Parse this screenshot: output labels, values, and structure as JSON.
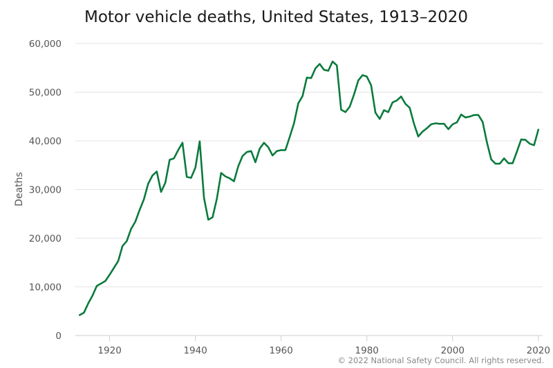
{
  "chart_data": {
    "type": "line",
    "title": "Motor vehicle deaths, United States, 1913–2020",
    "xlabel": "",
    "ylabel": "Deaths",
    "xlim": [
      1912,
      2021
    ],
    "ylim": [
      0,
      60000
    ],
    "x_ticks": [
      1920,
      1940,
      1960,
      1980,
      2000,
      2020
    ],
    "y_ticks": [
      0,
      10000,
      20000,
      30000,
      40000,
      50000,
      60000
    ],
    "y_tick_labels": [
      "0",
      "10,000",
      "20,000",
      "30,000",
      "40,000",
      "50,000",
      "60,000"
    ],
    "grid": true,
    "line_color": "#0a7a3c",
    "credit": "© 2022 National Safety Council. All rights reserved.",
    "x": [
      1913,
      1914,
      1915,
      1916,
      1917,
      1918,
      1919,
      1920,
      1921,
      1922,
      1923,
      1924,
      1925,
      1926,
      1927,
      1928,
      1929,
      1930,
      1931,
      1932,
      1933,
      1934,
      1935,
      1936,
      1937,
      1938,
      1939,
      1940,
      1941,
      1942,
      1943,
      1944,
      1945,
      1946,
      1947,
      1948,
      1949,
      1950,
      1951,
      1952,
      1953,
      1954,
      1955,
      1956,
      1957,
      1958,
      1959,
      1960,
      1961,
      1962,
      1963,
      1964,
      1965,
      1966,
      1967,
      1968,
      1969,
      1970,
      1971,
      1972,
      1973,
      1974,
      1975,
      1976,
      1977,
      1978,
      1979,
      1980,
      1981,
      1982,
      1983,
      1984,
      1985,
      1986,
      1987,
      1988,
      1989,
      1990,
      1991,
      1992,
      1993,
      1994,
      1995,
      1996,
      1997,
      1998,
      1999,
      2000,
      2001,
      2002,
      2003,
      2004,
      2005,
      2006,
      2007,
      2008,
      2009,
      2010,
      2011,
      2012,
      2013,
      2014,
      2015,
      2016,
      2017,
      2018,
      2019,
      2020
    ],
    "y": [
      4200,
      4700,
      6600,
      8200,
      10200,
      10700,
      11200,
      12500,
      13900,
      15300,
      18400,
      19400,
      21900,
      23400,
      25800,
      28000,
      31200,
      32900,
      33700,
      29500,
      31400,
      36100,
      36400,
      38100,
      39600,
      32600,
      32400,
      34500,
      39900,
      28300,
      23800,
      24300,
      28100,
      33400,
      32700,
      32300,
      31700,
      34800,
      36900,
      37700,
      37900,
      35600,
      38400,
      39600,
      38700,
      37000,
      37900,
      38100,
      38100,
      40800,
      43600,
      47700,
      49200,
      53000,
      52900,
      54900,
      55800,
      54600,
      54400,
      56300,
      55500,
      46400,
      45900,
      47000,
      49500,
      52400,
      53500,
      53200,
      51400,
      45800,
      44500,
      46300,
      45900,
      47900,
      48300,
      49100,
      47600,
      46800,
      43500,
      40900,
      41900,
      42600,
      43400,
      43600,
      43500,
      43500,
      42400,
      43400,
      43800,
      45400,
      44800,
      45000,
      45300,
      45300,
      43900,
      39700,
      36200,
      35300,
      35300,
      36400,
      35400,
      35400,
      37800,
      40300,
      40200,
      39400,
      39100,
      42300
    ]
  }
}
